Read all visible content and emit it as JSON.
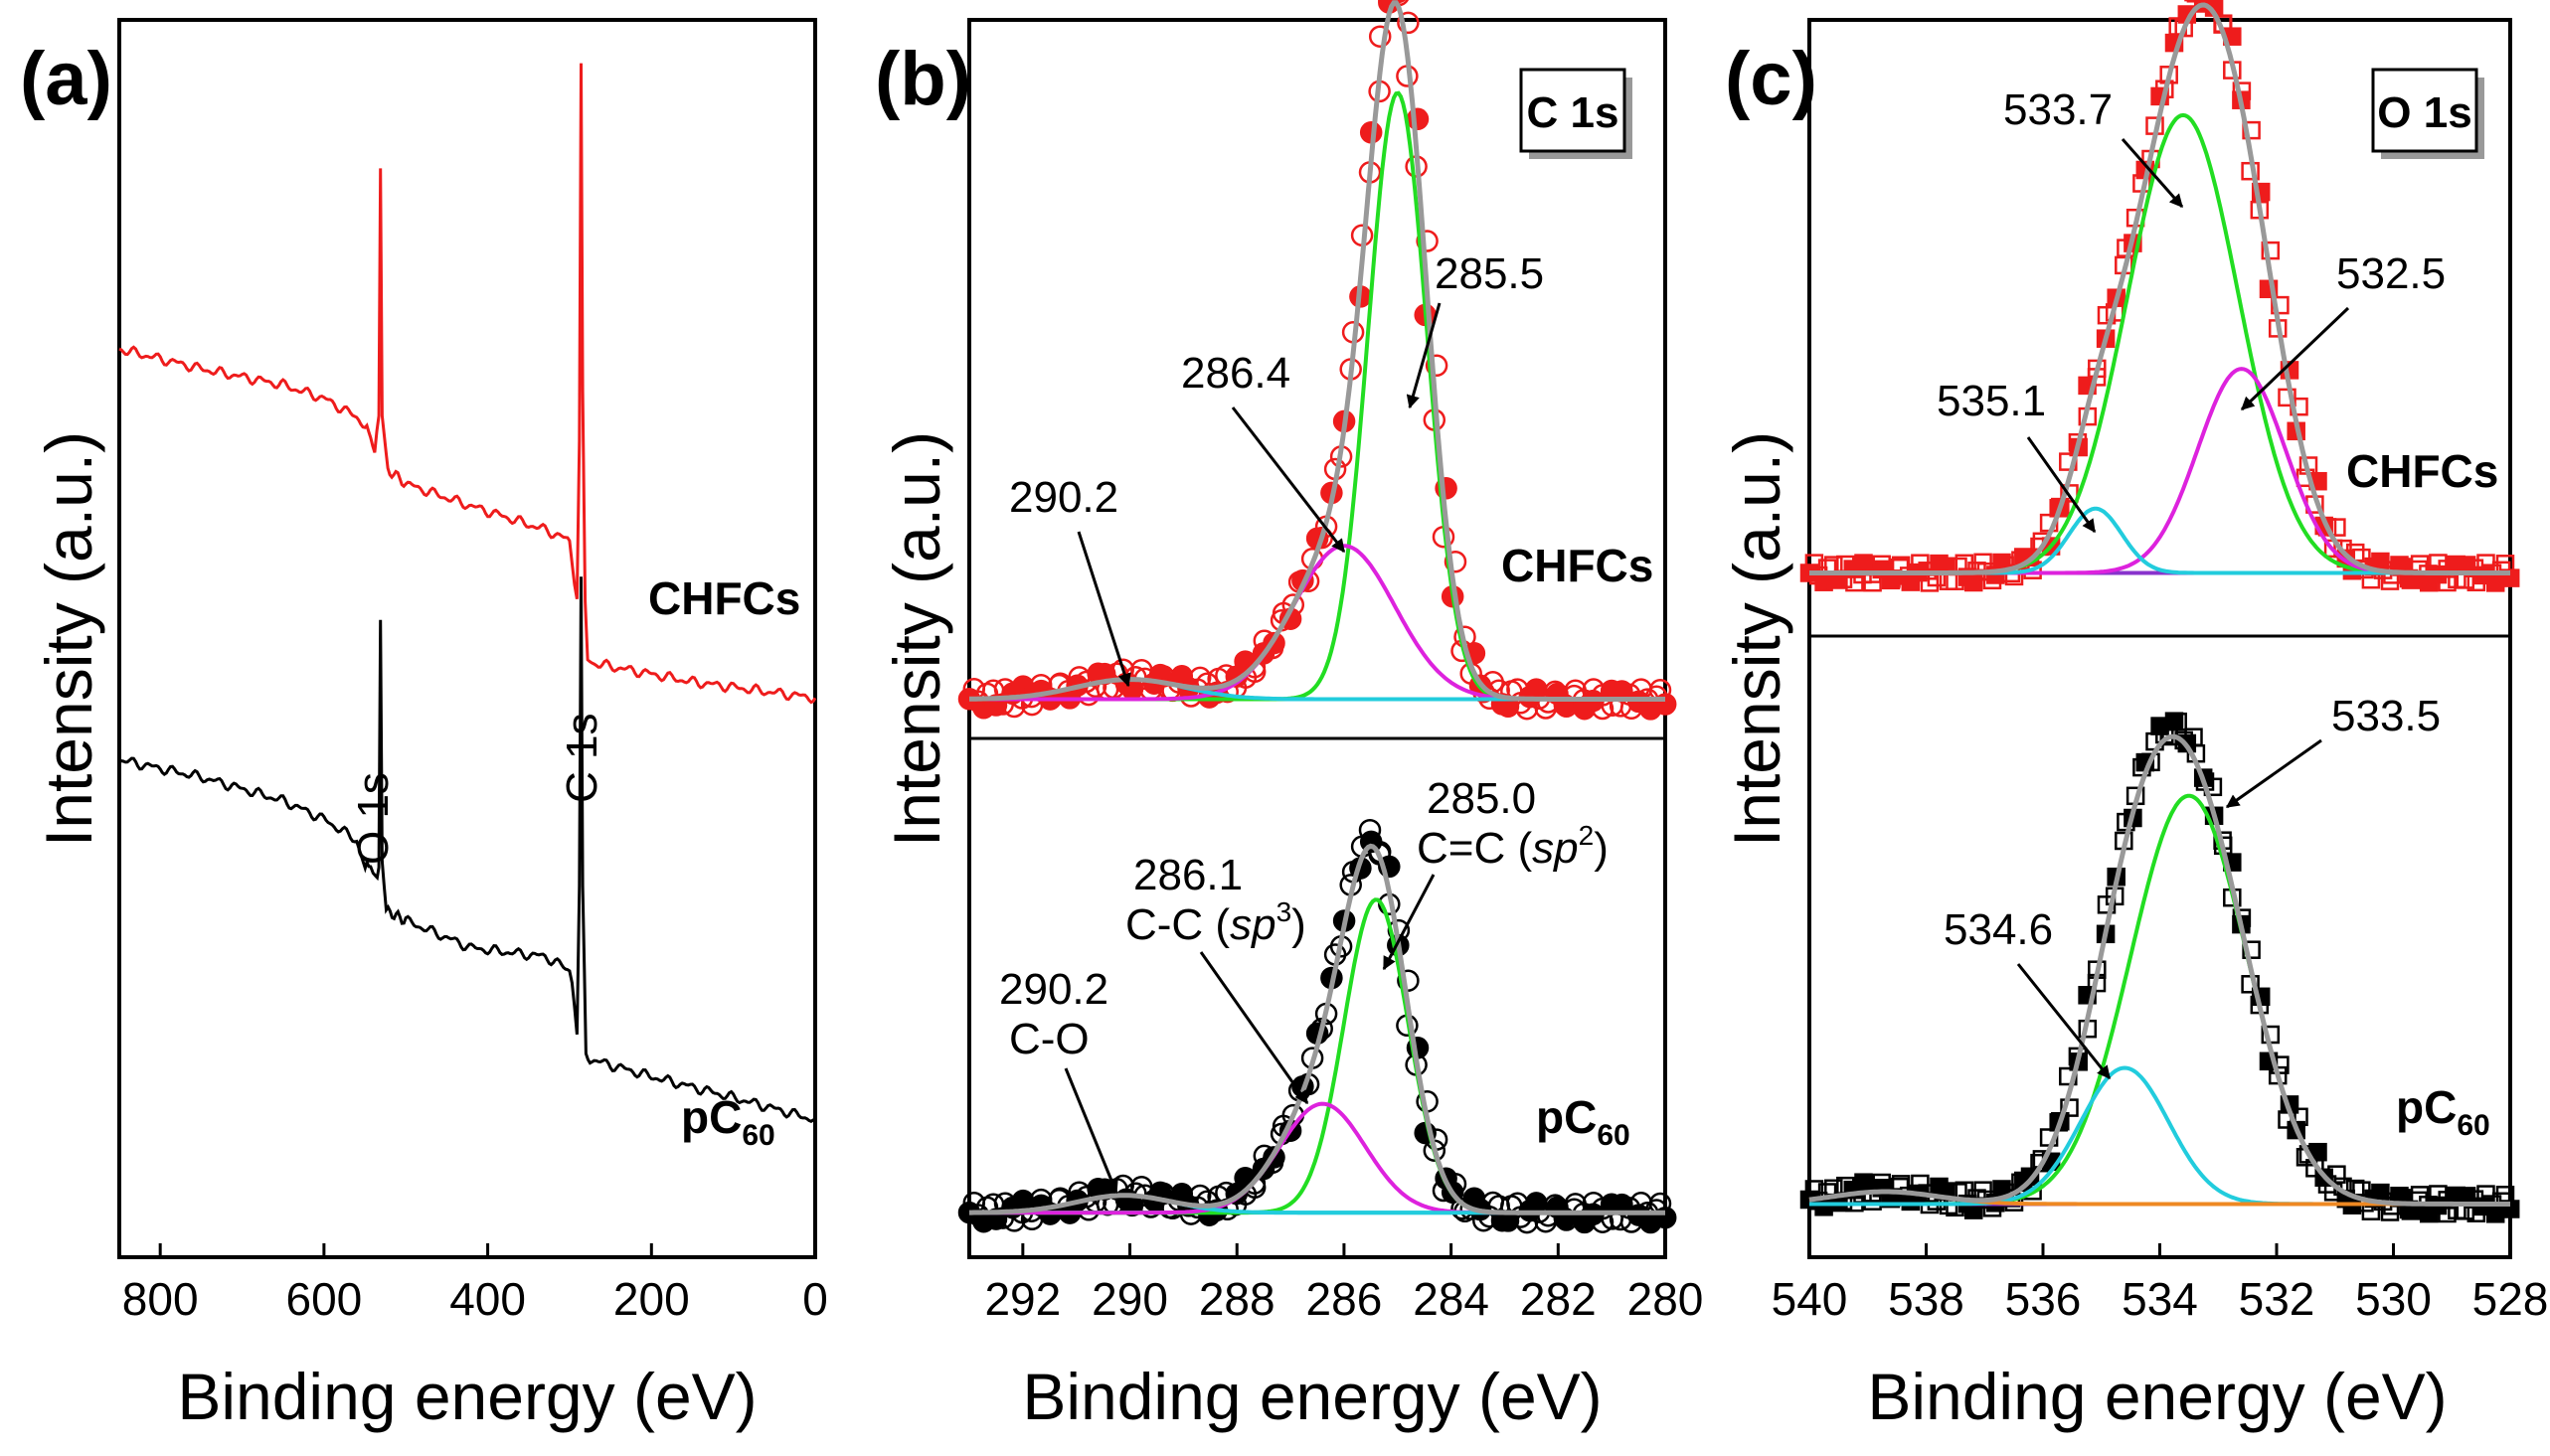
{
  "figure": {
    "colors": {
      "chfcs": "#ee1c1c",
      "pc60": "#000000",
      "fit": "#999999",
      "green": "#22dd22",
      "magenta": "#dd22dd",
      "cyan": "#22ccdd",
      "baseline": "#8833cc",
      "orange": "#ee8822"
    }
  },
  "chart_data": [
    {
      "panel": "(a)",
      "type": "line",
      "xlabel": "Binding energy (eV)",
      "ylabel": "Intensity (a.u.)",
      "xlim": [
        850,
        0
      ],
      "ylim": [
        0,
        100
      ],
      "xticks": [
        "800",
        "600",
        "400",
        "200",
        "0"
      ],
      "xtick_values": [
        800,
        600,
        400,
        200,
        0
      ],
      "series": [
        {
          "name": "CHFCs",
          "color": "#ee1c1c",
          "points": [
            [
              850,
              73.4
            ],
            [
              750,
              71.8
            ],
            [
              650,
              70.5
            ],
            [
              600,
              69.4
            ],
            [
              560,
              67.9
            ],
            [
              550,
              67.2
            ],
            [
              543,
              66.4
            ],
            [
              538,
              65.1
            ],
            [
              533,
              68.0
            ],
            [
              531,
              88.0
            ],
            [
              529,
              68.0
            ],
            [
              522,
              63.7
            ],
            [
              500,
              62.5
            ],
            [
              420,
              60.7
            ],
            [
              330,
              58.8
            ],
            [
              300,
              57.9
            ],
            [
              294,
              54.3
            ],
            [
              291,
              53.2
            ],
            [
              288,
              66.0
            ],
            [
              286,
              96.5
            ],
            [
              284,
              70.0
            ],
            [
              281,
              53.0
            ],
            [
              278,
              48.4
            ],
            [
              270,
              48.0
            ],
            [
              150,
              46.5
            ],
            [
              0,
              45.2
            ]
          ]
        },
        {
          "name": "pC60",
          "color": "#000000",
          "points": [
            [
              850,
              40.2
            ],
            [
              750,
              38.8
            ],
            [
              650,
              36.9
            ],
            [
              600,
              35.4
            ],
            [
              560,
              33.7
            ],
            [
              552,
              31.9
            ],
            [
              543,
              31.5
            ],
            [
              537,
              30.7
            ],
            [
              533,
              31.5
            ],
            [
              531,
              51.5
            ],
            [
              529,
              32.0
            ],
            [
              524,
              28.0
            ],
            [
              500,
              27.2
            ],
            [
              420,
              25.0
            ],
            [
              330,
              24.3
            ],
            [
              300,
              23.2
            ],
            [
              294,
              20.3
            ],
            [
              291,
              18.0
            ],
            [
              288,
              30.0
            ],
            [
              286,
              55.0
            ],
            [
              284,
              30.0
            ],
            [
              280,
              16.5
            ],
            [
              275,
              16.0
            ],
            [
              200,
              14.6
            ],
            [
              100,
              12.9
            ],
            [
              0,
              11.1
            ]
          ]
        }
      ],
      "annotations": [
        {
          "text": "O 1s",
          "x": 533
        },
        {
          "text": "C 1s",
          "x": 286
        },
        {
          "text": "CHFCs"
        },
        {
          "text": "pC",
          "sub": "60"
        }
      ]
    },
    {
      "panel": "(b)",
      "type": "line",
      "title": "C 1s",
      "xlabel": "Binding energy (eV)",
      "ylabel": "Intensity (a.u.)",
      "xlim": [
        293,
        280
      ],
      "ylim": [
        0,
        100
      ],
      "xticks": [
        "292",
        "290",
        "288",
        "286",
        "284",
        "282",
        "280"
      ],
      "xtick_values": [
        292,
        290,
        288,
        286,
        284,
        282,
        280
      ],
      "offsets": {
        "CHFCs": 45.1,
        "pC60": 3.6
      },
      "components": {
        "CHFCs": [
          {
            "center": 285.0,
            "height": 49.0,
            "width": 0.55,
            "color": "#22dd22"
          },
          {
            "center": 286.0,
            "height": 12.4,
            "width": 0.95,
            "color": "#dd22dd"
          },
          {
            "center": 290.0,
            "height": 1.6,
            "width": 1.0,
            "color": "#22ccdd"
          }
        ],
        "pC60": [
          {
            "center": 285.4,
            "height": 25.3,
            "width": 0.6,
            "color": "#22dd22"
          },
          {
            "center": 286.4,
            "height": 8.8,
            "width": 0.8,
            "color": "#dd22dd"
          },
          {
            "center": 290.1,
            "height": 1.4,
            "width": 0.9,
            "color": "#22ccdd"
          }
        ]
      },
      "annotations": [
        {
          "text": "285.5"
        },
        {
          "text": "286.4"
        },
        {
          "text": "290.2"
        },
        {
          "text": "CHFCs"
        },
        {
          "text": "285.0"
        },
        {
          "text": "C=C (",
          "italic": "sp",
          "sup": "2",
          "close": ")"
        },
        {
          "text": "286.1"
        },
        {
          "text": "C-C (",
          "italic": "sp",
          "sup": "3",
          "close": ")"
        },
        {
          "text": "290.2"
        },
        {
          "text": "C-O"
        },
        {
          "text": "pC",
          "sub": "60"
        }
      ]
    },
    {
      "panel": "(c)",
      "type": "line",
      "title": "O 1s",
      "xlabel": "Binding energy (eV)",
      "ylabel": "Intensity (a.u.)",
      "xlim": [
        540,
        528
      ],
      "ylim": [
        0,
        100
      ],
      "xticks": [
        "540",
        "538",
        "536",
        "534",
        "532",
        "530",
        "528"
      ],
      "xtick_values": [
        540,
        538,
        536,
        534,
        532,
        530,
        528
      ],
      "offsets": {
        "CHFCs": 55.3,
        "pC60": 4.3
      },
      "components": {
        "CHFCs": [
          {
            "center": 533.6,
            "height": 37.0,
            "width": 0.95,
            "color": "#22dd22"
          },
          {
            "center": 532.6,
            "height": 16.5,
            "width": 0.75,
            "color": "#dd22dd"
          },
          {
            "center": 535.1,
            "height": 5.2,
            "width": 0.45,
            "color": "#22ccdd"
          }
        ],
        "pC60": [
          {
            "center": 533.5,
            "height": 33.0,
            "width": 1.0,
            "color": "#22dd22"
          },
          {
            "center": 534.6,
            "height": 11.0,
            "width": 0.75,
            "color": "#22ccdd"
          },
          {
            "center": 538.7,
            "height": 1.0,
            "width": 0.9,
            "color": "#ee8822"
          }
        ]
      },
      "annotations": [
        {
          "text": "533.7"
        },
        {
          "text": "532.5"
        },
        {
          "text": "535.1"
        },
        {
          "text": "CHFCs"
        },
        {
          "text": "533.5"
        },
        {
          "text": "534.6"
        },
        {
          "text": "pC",
          "sub": "60"
        }
      ]
    }
  ]
}
